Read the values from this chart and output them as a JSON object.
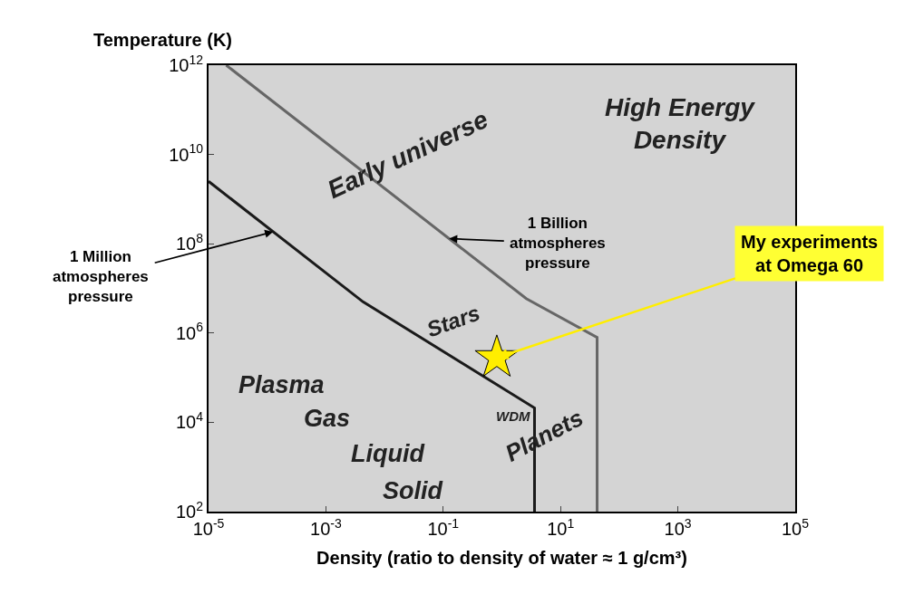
{
  "chart_data": {
    "type": "line",
    "xlabel": "Density (ratio to density of water ≈ 1 g/cm³)",
    "ylabel": "Temperature (K)",
    "log": "xy",
    "grid": false,
    "legend": false,
    "xlim": [
      1e-05,
      100000
    ],
    "ylim": [
      100,
      1000000000000
    ],
    "xticks": [
      {
        "value": 1e-05,
        "label": "10$^{-5}$"
      },
      {
        "value": 0.001,
        "label": "10$^{-3}$"
      },
      {
        "value": 0.1,
        "label": "10$^{-1}$"
      },
      {
        "value": 10,
        "label": "10$^{1}$"
      },
      {
        "value": 1000,
        "label": "10$^{3}$"
      },
      {
        "value": 100000,
        "label": "10$^{5}$"
      }
    ],
    "yticks": [
      {
        "value": 100,
        "label": "10$^{2}$"
      },
      {
        "value": 10000,
        "label": "10$^{4}$"
      },
      {
        "value": 1000000,
        "label": "10$^{6}$"
      },
      {
        "value": 100000000,
        "label": "10$^{8}$"
      },
      {
        "value": 10000000000,
        "label": "10$^{10}$"
      },
      {
        "value": 1000000000000,
        "label": "10$^{12}$"
      }
    ],
    "series": [
      {
        "color": "#1a1a1a",
        "marker": "none",
        "x": [
          1e-05,
          0.0043,
          3.6,
          3.6
        ],
        "values": [
          2500000000,
          5000000,
          21000,
          100
        ]
      },
      {
        "color": "#666666",
        "marker": "none",
        "x": [
          2e-05,
          2.6,
          42,
          42
        ],
        "values": [
          1000000000000,
          5900000,
          800000,
          100
        ]
      },
      {
        "type": "scatter",
        "color": "#ffee00",
        "marker": "star",
        "x": [
          0.82
        ],
        "values": [
          280000
        ]
      }
    ],
    "annotations": [
      {
        "text": "1 Million\natmospheres\npressure",
        "x": 0.000126,
        "y": 186000000
      },
      {
        "text": "1 Billion\natmospheres\npressure",
        "x": 0.126,
        "y": 130000000
      },
      {
        "text": "My experiments\nat Omega 60",
        "x": 0.82,
        "y": 280000
      },
      "Early universe",
      "High Energy\nDensity",
      "Stars",
      "WDM",
      "Plasma",
      "Gas",
      "Liquid",
      "Solid",
      "Planets"
    ]
  }
}
